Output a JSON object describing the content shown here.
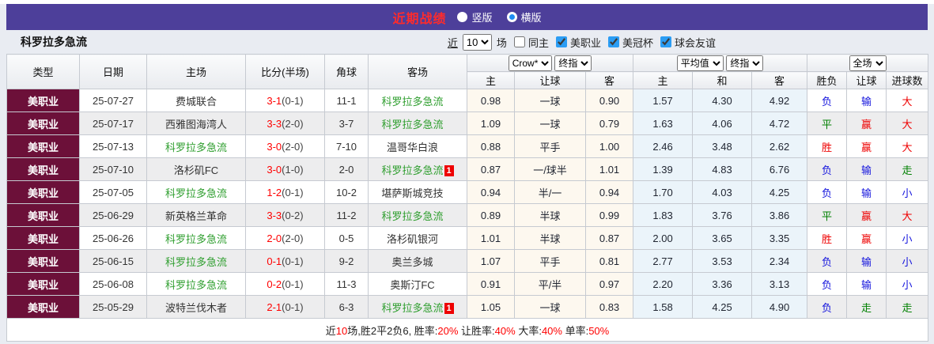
{
  "titlebar": {
    "title": "近期战绩",
    "radio_vertical": "竖版",
    "radio_horizontal": "横版"
  },
  "filterbar": {
    "team_name": "科罗拉多急流",
    "near_label": "近",
    "near_value": "10",
    "games_label": "场",
    "same_home_label": "同主",
    "league_checkboxes": [
      "美职业",
      "美冠杯",
      "球会友谊"
    ]
  },
  "table": {
    "left_headers": [
      "类型",
      "日期",
      "主场",
      "比分(半场)",
      "角球",
      "客场"
    ],
    "sub_headers": [
      "主",
      "让球",
      "客",
      "主",
      "和",
      "客",
      "胜负",
      "让球",
      "进球数"
    ],
    "selects": {
      "crow": "Crow*",
      "final1": "终指",
      "average": "平均值",
      "final2": "终指",
      "full": "全场"
    },
    "rows": [
      {
        "type": "美职业",
        "date": "25-07-27",
        "home": "费城联合",
        "home_team": false,
        "score": "3-1",
        "half": "(0-1)",
        "corners": "11-1",
        "away": "科罗拉多急流",
        "away_team": true,
        "away_badge": "",
        "odds": [
          "0.98",
          "一球",
          "0.90"
        ],
        "avg": [
          "1.57",
          "4.30",
          "4.92"
        ],
        "outcome": [
          "负",
          "输",
          "大"
        ]
      },
      {
        "type": "美职业",
        "date": "25-07-17",
        "home": "西雅图海湾人",
        "home_team": false,
        "score": "3-3",
        "half": "(2-0)",
        "corners": "3-7",
        "away": "科罗拉多急流",
        "away_team": true,
        "away_badge": "",
        "odds": [
          "1.09",
          "一球",
          "0.79"
        ],
        "avg": [
          "1.63",
          "4.06",
          "4.72"
        ],
        "outcome": [
          "平",
          "赢",
          "大"
        ]
      },
      {
        "type": "美职业",
        "date": "25-07-13",
        "home": "科罗拉多急流",
        "home_team": true,
        "score": "3-0",
        "half": "(2-0)",
        "corners": "7-10",
        "away": "温哥华白浪",
        "away_team": false,
        "away_badge": "",
        "odds": [
          "0.88",
          "平手",
          "1.00"
        ],
        "avg": [
          "2.46",
          "3.48",
          "2.62"
        ],
        "outcome": [
          "胜",
          "赢",
          "大"
        ]
      },
      {
        "type": "美职业",
        "date": "25-07-10",
        "home": "洛杉矶FC",
        "home_team": false,
        "score": "3-0",
        "half": "(1-0)",
        "corners": "2-0",
        "away": "科罗拉多急流",
        "away_team": true,
        "away_badge": "1",
        "odds": [
          "0.87",
          "一/球半",
          "1.01"
        ],
        "avg": [
          "1.39",
          "4.83",
          "6.76"
        ],
        "outcome": [
          "负",
          "输",
          "走"
        ]
      },
      {
        "type": "美职业",
        "date": "25-07-05",
        "home": "科罗拉多急流",
        "home_team": true,
        "score": "1-2",
        "half": "(0-1)",
        "corners": "10-2",
        "away": "堪萨斯城竞技",
        "away_team": false,
        "away_badge": "",
        "odds": [
          "0.94",
          "半/一",
          "0.94"
        ],
        "avg": [
          "1.70",
          "4.03",
          "4.25"
        ],
        "outcome": [
          "负",
          "输",
          "小"
        ]
      },
      {
        "type": "美职业",
        "date": "25-06-29",
        "home": "新英格兰革命",
        "home_team": false,
        "score": "3-3",
        "half": "(0-2)",
        "corners": "11-2",
        "away": "科罗拉多急流",
        "away_team": true,
        "away_badge": "",
        "odds": [
          "0.89",
          "半球",
          "0.99"
        ],
        "avg": [
          "1.83",
          "3.76",
          "3.86"
        ],
        "outcome": [
          "平",
          "赢",
          "大"
        ]
      },
      {
        "type": "美职业",
        "date": "25-06-26",
        "home": "科罗拉多急流",
        "home_team": true,
        "score": "2-0",
        "half": "(2-0)",
        "corners": "0-5",
        "away": "洛杉矶银河",
        "away_team": false,
        "away_badge": "",
        "odds": [
          "1.01",
          "半球",
          "0.87"
        ],
        "avg": [
          "2.00",
          "3.65",
          "3.35"
        ],
        "outcome": [
          "胜",
          "赢",
          "小"
        ]
      },
      {
        "type": "美职业",
        "date": "25-06-15",
        "home": "科罗拉多急流",
        "home_team": true,
        "score": "0-1",
        "half": "(0-1)",
        "corners": "9-2",
        "away": "奥兰多城",
        "away_team": false,
        "away_badge": "",
        "odds": [
          "1.07",
          "平手",
          "0.81"
        ],
        "avg": [
          "2.77",
          "3.53",
          "2.34"
        ],
        "outcome": [
          "负",
          "输",
          "小"
        ]
      },
      {
        "type": "美职业",
        "date": "25-06-08",
        "home": "科罗拉多急流",
        "home_team": true,
        "score": "0-2",
        "half": "(0-1)",
        "corners": "11-3",
        "away": "奥斯汀FC",
        "away_team": false,
        "away_badge": "",
        "odds": [
          "0.91",
          "平/半",
          "0.97"
        ],
        "avg": [
          "2.20",
          "3.36",
          "3.13"
        ],
        "outcome": [
          "负",
          "输",
          "小"
        ]
      },
      {
        "type": "美职业",
        "date": "25-05-29",
        "home": "波特兰伐木者",
        "home_team": false,
        "score": "2-1",
        "half": "(0-1)",
        "corners": "6-3",
        "away": "科罗拉多急流",
        "away_team": true,
        "away_badge": "1",
        "odds": [
          "1.05",
          "一球",
          "0.83"
        ],
        "avg": [
          "1.58",
          "4.25",
          "4.90"
        ],
        "outcome": [
          "负",
          "走",
          "走"
        ]
      }
    ],
    "summary_segments": [
      {
        "text": "近",
        "red": false
      },
      {
        "text": "10",
        "red": true
      },
      {
        "text": "场,胜2平2负6, 胜率:",
        "red": false
      },
      {
        "text": "20%",
        "red": true
      },
      {
        "text": " 让胜率:",
        "red": false
      },
      {
        "text": "40%",
        "red": true
      },
      {
        "text": " 大率:",
        "red": false
      },
      {
        "text": "40%",
        "red": true
      },
      {
        "text": " 单率:",
        "red": false
      },
      {
        "text": "50%",
        "red": true
      }
    ]
  },
  "colors": {
    "outcome": {
      "胜": "#ee0000",
      "平": "#008000",
      "负": "#1414dd",
      "赢": "#ee0000",
      "走": "#008000",
      "输": "#1414dd",
      "大": "#ee0000",
      "小": "#1414dd"
    },
    "titlebar_bg": "#4d3f9a",
    "league_cell_bg": "#6c1039",
    "focus_team": "#2e9e2e"
  }
}
